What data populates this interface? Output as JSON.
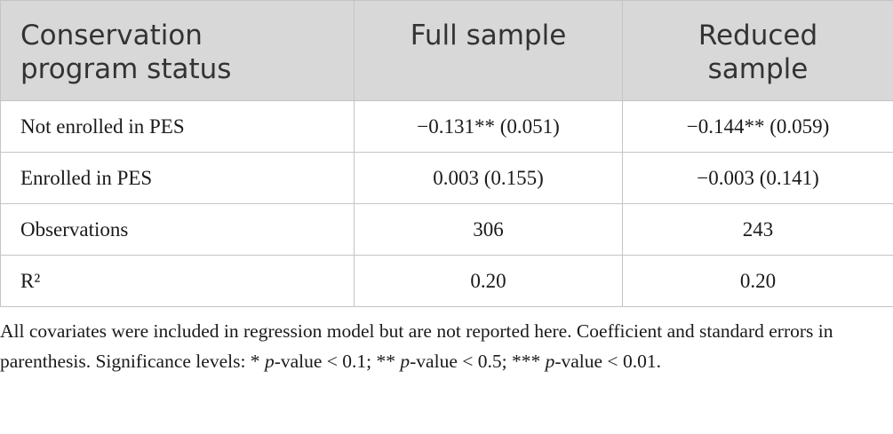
{
  "table": {
    "header": [
      "Conservation program status",
      "Full sample",
      "Reduced sample"
    ],
    "rows": [
      [
        "Not enrolled in PES",
        "−0.131** (0.051)",
        "−0.144** (0.059)"
      ],
      [
        "Enrolled in PES",
        "0.003 (0.155)",
        "−0.003 (0.141)"
      ],
      [
        "Observations",
        "306",
        "243"
      ],
      [
        "R²",
        "0.20",
        "0.20"
      ]
    ]
  },
  "footnote": [
    "All covariates were included in regression model but are not reported here. Coefficient and standard errors in parenthesis. Significance levels: * ",
    "p",
    "-value < 0.1; ** ",
    "p",
    "-value < 0.5; *** ",
    "p",
    "-value < 0.01."
  ]
}
